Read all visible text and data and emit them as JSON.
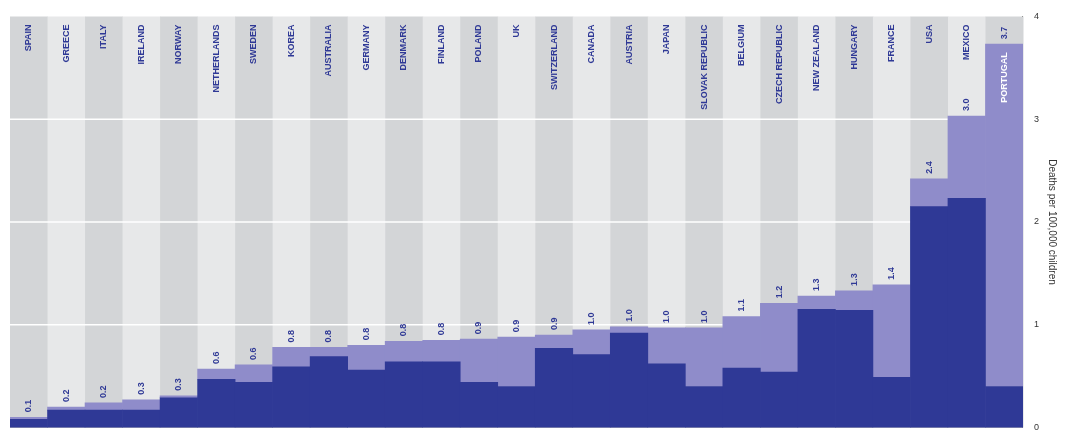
{
  "chart_data": {
    "type": "bar",
    "stacked": true,
    "ylabel": "Deaths per 100,000 children",
    "ylim": [
      0,
      4
    ],
    "yticks": [
      0,
      1,
      2,
      3,
      4
    ],
    "grid": "y",
    "categories": [
      "SPAIN",
      "GREECE",
      "ITALY",
      "IRELAND",
      "NORWAY",
      "NETHERLANDS",
      "SWEDEN",
      "KOREA",
      "AUSTRALIA",
      "GERMANY",
      "DENMARK",
      "FINLAND",
      "POLAND",
      "UK",
      "SWITZERLAND",
      "CANADA",
      "AUSTRIA",
      "JAPAN",
      "SLOVAK REPUBLIC",
      "BELGIUM",
      "CZECH REPUBLIC",
      "NEW ZEALAND",
      "HUNGARY",
      "FRANCE",
      "USA",
      "MEXICO",
      "PORTUGAL"
    ],
    "series": [
      {
        "color": "#2f3996",
        "values": [
          0.08,
          0.17,
          0.17,
          0.17,
          0.29,
          0.47,
          0.44,
          0.59,
          0.69,
          0.56,
          0.64,
          0.64,
          0.44,
          0.4,
          0.77,
          0.71,
          0.92,
          0.62,
          0.4,
          0.58,
          0.54,
          1.15,
          1.14,
          0.49,
          2.15,
          2.23,
          0.4
        ]
      },
      {
        "color": "#8f8cca",
        "values": [
          0.02,
          0.03,
          0.07,
          0.1,
          0.02,
          0.1,
          0.17,
          0.19,
          0.09,
          0.24,
          0.2,
          0.21,
          0.42,
          0.48,
          0.13,
          0.24,
          0.06,
          0.35,
          0.57,
          0.5,
          0.67,
          0.13,
          0.19,
          0.9,
          0.27,
          0.8,
          3.33
        ]
      }
    ],
    "totals": [
      "0.1",
      "0.2",
      "0.2",
      "0.3",
      "0.3",
      "0.6",
      "0.6",
      "0.8",
      "0.8",
      "0.8",
      "0.8",
      "0.8",
      "0.9",
      "0.9",
      "0.9",
      "1.0",
      "1.0",
      "1.0",
      "1.0",
      "1.1",
      "1.2",
      "1.3",
      "1.3",
      "1.4",
      "2.4",
      "3.0",
      "3.7"
    ]
  }
}
